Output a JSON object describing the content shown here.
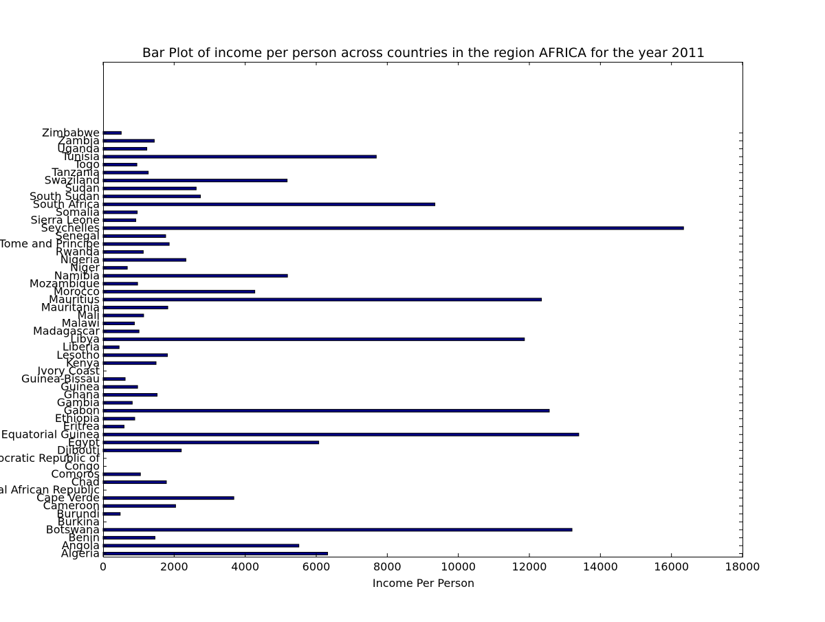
{
  "chart_data": {
    "type": "bar",
    "orientation": "horizontal",
    "title": "Bar Plot of income per person across countries in the region AFRICA for the year 2011",
    "xlabel": "Income Per Person",
    "ylabel": "",
    "xlim": [
      0,
      18000
    ],
    "xticks": [
      0,
      2000,
      4000,
      6000,
      8000,
      10000,
      12000,
      14000,
      16000,
      18000
    ],
    "xtick_labels": [
      "0",
      "2000",
      "4000",
      "6000",
      "8000",
      "10000",
      "12000",
      "14000",
      "16000",
      "18000"
    ],
    "grid": false,
    "bar_color": "#000080",
    "categories": [
      "Algeria",
      "Angola",
      "Benin",
      "Botswana",
      "Burkina",
      "Burundi",
      "Cameroon",
      "Cape Verde",
      "Central African Republic",
      "Chad",
      "Comoros",
      "Congo",
      "Democratic Republic of",
      "Djibouti",
      "Egypt",
      "Equatorial Guinea",
      "Eritrea",
      "Ethiopia",
      "Gabon",
      "Gambia",
      "Ghana",
      "Guinea",
      "Guinea-Bissau",
      "Ivory Coast",
      "Kenya",
      "Lesotho",
      "Liberia",
      "Libya",
      "Madagascar",
      "Malawi",
      "Mali",
      "Mauritania",
      "Mauritius",
      "Morocco",
      "Mozambique",
      "Namibia",
      "Niger",
      "Nigeria",
      "Rwanda",
      "Sao Tome and Principe",
      "Senegal",
      "Seychelles",
      "Sierra Leone",
      "Somalia",
      "South Africa",
      "South Sudan",
      "Sudan",
      "Swaziland",
      "Tanzania",
      "Togo",
      "Tunisia",
      "Uganda",
      "Zambia",
      "Zimbabwe"
    ],
    "values": [
      6320,
      5510,
      1460,
      13200,
      0,
      480,
      2040,
      3680,
      0,
      1780,
      1050,
      0,
      0,
      2200,
      6070,
      13390,
      590,
      890,
      12560,
      820,
      1520,
      970,
      620,
      0,
      1490,
      1810,
      450,
      11860,
      1010,
      880,
      1140,
      1820,
      12340,
      4270,
      970,
      5190,
      680,
      2330,
      1130,
      1860,
      1760,
      16340,
      920,
      960,
      9340,
      2740,
      2620,
      5180,
      1270,
      950,
      7690,
      1230,
      1440,
      510
    ]
  }
}
